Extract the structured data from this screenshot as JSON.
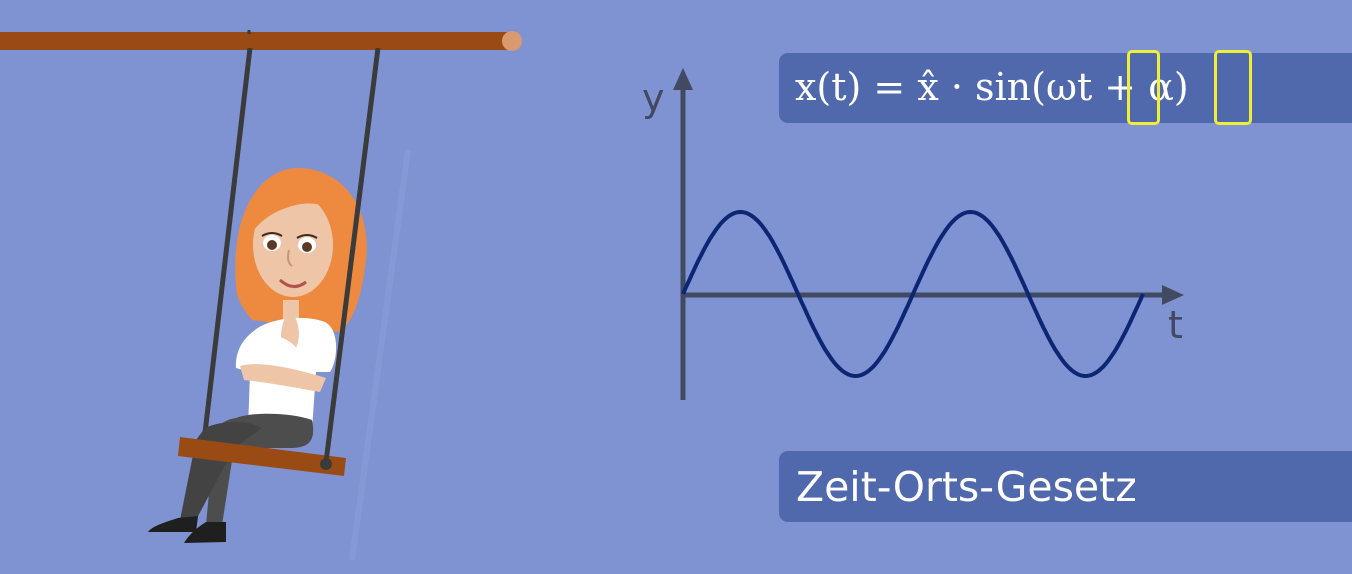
{
  "formula": {
    "text": "x(t) = x̂ · sin(ωt + α)",
    "highlighted_terms": [
      "t",
      "α"
    ],
    "highlight_color": "#f0ee37"
  },
  "graph": {
    "y_label": "y",
    "x_label": "t",
    "curve": "sine",
    "periods": 2
  },
  "title": "Zeit-Orts-Gesetz",
  "colors": {
    "background": "#7f93d3",
    "panel": "#5068ac",
    "curve": "#0c2673",
    "axis": "#414a60",
    "swing_bar": "#9a4b14"
  },
  "illustration": {
    "character": "woman-on-swing-icon",
    "hair_color": "#ed8a3f"
  }
}
